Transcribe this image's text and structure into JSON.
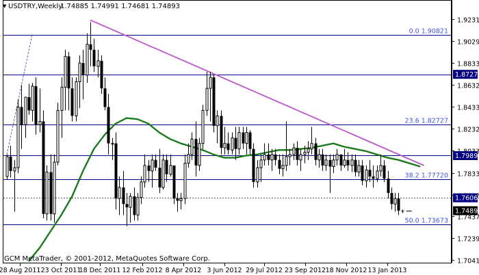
{
  "header": {
    "symbol": "USDTRY,Weekly",
    "ohlc": "1.74885 1.74991 1.74681 1.74893"
  },
  "footer": {
    "copyright": "GCM MetaTrader, © 2001-2012, MetaQuotes Software Corp."
  },
  "colors": {
    "background": "#ffffff",
    "candle": "#000000",
    "moving_average": "#1a7a1a",
    "trendline": "#bb55cc",
    "fibonacci": "#00008b",
    "fibonacci_label": "#4455dd",
    "price_tag": "#000080",
    "current_price_tag": "#000000",
    "text": "#000000"
  },
  "chart_data": {
    "type": "candlestick",
    "title": "USDTRY,Weekly",
    "timeframe": "Weekly",
    "x_tick_labels": [
      "28 Aug 2011",
      "23 Oct 2011",
      "18 Dec 2011",
      "12 Feb 2012",
      "8 Apr 2012",
      "3 Jun 2012",
      "29 Jul 2012",
      "23 Sep 2012",
      "18 Nov 2012",
      "13 Jan 2013"
    ],
    "y_ticks": [
      1.9231,
      1.9029,
      1.8833,
      1.8632,
      1.8433,
      1.8232,
      1.8033,
      1.7833,
      1.7632,
      1.7437,
      1.7239,
      1.7041
    ],
    "y_tick_labels": [
      "1.92310",
      "1.90290",
      "1.88330",
      "1.86320",
      "1.84330",
      "1.82320",
      "1.80330",
      "1.78330",
      "1.76320",
      "1.74370",
      "1.72390",
      "1.70410"
    ],
    "ylim": [
      1.703,
      1.929
    ],
    "fibonacci_levels": [
      {
        "label": "0.0 1.90821",
        "value": 1.90821
      },
      {
        "label": "23.6 1.82727",
        "value": 1.82727
      },
      {
        "label": "38.2 1.77720",
        "value": 1.7772
      },
      {
        "label": "50.0 1.73673",
        "value": 1.73673
      }
    ],
    "horizontal_price_levels": [
      1.87271,
      1.79893
    ],
    "price_tags": [
      "1.87271",
      "1.79893",
      "1.76062",
      "1.74893"
    ],
    "current_price": 1.74893,
    "current_price_label": "1.74893",
    "dotted_level": 1.76062,
    "trendline": {
      "from": {
        "bar": 23,
        "price": 1.922
      },
      "to": {
        "bar": 115,
        "price": 1.79
      }
    },
    "left_dashed_line": {
      "from": {
        "bar": 0,
        "price": 1.8
      },
      "to": {
        "bar": 7,
        "price": 1.909
      }
    },
    "series": [
      {
        "type": "candlestick",
        "bars": [
          [
            1.78,
            1.8,
            1.777,
            1.798
          ],
          [
            1.798,
            1.808,
            1.779,
            1.785
          ],
          [
            1.785,
            1.795,
            1.748,
            1.788
          ],
          [
            1.788,
            1.85,
            1.783,
            1.843
          ],
          [
            1.843,
            1.863,
            1.805,
            1.827
          ],
          [
            1.827,
            1.85,
            1.815,
            1.852
          ],
          [
            1.852,
            1.864,
            1.836,
            1.84
          ],
          [
            1.84,
            1.865,
            1.83,
            1.862
          ],
          [
            1.862,
            1.87,
            1.818,
            1.827
          ],
          [
            1.827,
            1.86,
            1.82,
            1.83
          ],
          [
            1.83,
            1.84,
            1.742,
            1.746
          ],
          [
            1.746,
            1.79,
            1.74,
            1.784
          ],
          [
            1.784,
            1.8,
            1.74,
            1.746
          ],
          [
            1.746,
            1.8,
            1.738,
            1.793
          ],
          [
            1.793,
            1.847,
            1.79,
            1.84
          ],
          [
            1.84,
            1.87,
            1.815,
            1.861
          ],
          [
            1.861,
            1.895,
            1.84,
            1.889
          ],
          [
            1.889,
            1.893,
            1.84,
            1.86
          ],
          [
            1.86,
            1.87,
            1.83,
            1.835
          ],
          [
            1.835,
            1.87,
            1.83,
            1.866
          ],
          [
            1.866,
            1.89,
            1.842,
            1.883
          ],
          [
            1.883,
            1.895,
            1.85,
            1.872
          ],
          [
            1.872,
            1.91,
            1.865,
            1.9
          ],
          [
            1.9,
            1.92,
            1.88,
            1.895
          ],
          [
            1.895,
            1.905,
            1.875,
            1.88
          ],
          [
            1.88,
            1.895,
            1.87,
            1.885
          ],
          [
            1.885,
            1.89,
            1.855,
            1.86
          ],
          [
            1.86,
            1.87,
            1.84,
            1.843
          ],
          [
            1.843,
            1.855,
            1.8,
            1.81
          ],
          [
            1.81,
            1.815,
            1.795,
            1.81
          ],
          [
            1.81,
            1.82,
            1.75,
            1.76
          ],
          [
            1.76,
            1.78,
            1.745,
            1.77
          ],
          [
            1.77,
            1.785,
            1.745,
            1.755
          ],
          [
            1.755,
            1.765,
            1.735,
            1.752
          ],
          [
            1.752,
            1.765,
            1.738,
            1.762
          ],
          [
            1.762,
            1.77,
            1.74,
            1.745
          ],
          [
            1.745,
            1.765,
            1.74,
            1.761
          ],
          [
            1.761,
            1.78,
            1.755,
            1.775
          ],
          [
            1.775,
            1.8,
            1.77,
            1.79
          ],
          [
            1.79,
            1.795,
            1.775,
            1.785
          ],
          [
            1.785,
            1.8,
            1.77,
            1.795
          ],
          [
            1.795,
            1.8,
            1.785,
            1.788
          ],
          [
            1.788,
            1.805,
            1.765,
            1.77
          ],
          [
            1.77,
            1.8,
            1.768,
            1.795
          ],
          [
            1.795,
            1.8,
            1.775,
            1.782
          ],
          [
            1.782,
            1.8,
            1.78,
            1.79
          ],
          [
            1.79,
            1.79,
            1.755,
            1.76
          ],
          [
            1.76,
            1.765,
            1.748,
            1.758
          ],
          [
            1.758,
            1.765,
            1.75,
            1.76
          ],
          [
            1.76,
            1.8,
            1.755,
            1.792
          ],
          [
            1.792,
            1.81,
            1.788,
            1.8
          ],
          [
            1.8,
            1.82,
            1.795,
            1.814
          ],
          [
            1.814,
            1.83,
            1.78,
            1.79
          ],
          [
            1.79,
            1.815,
            1.785,
            1.81
          ],
          [
            1.81,
            1.845,
            1.805,
            1.84
          ],
          [
            1.84,
            1.875,
            1.835,
            1.86
          ],
          [
            1.86,
            1.875,
            1.83,
            1.87
          ],
          [
            1.87,
            1.872,
            1.82,
            1.826
          ],
          [
            1.826,
            1.84,
            1.81,
            1.835
          ],
          [
            1.835,
            1.84,
            1.8,
            1.806
          ],
          [
            1.806,
            1.825,
            1.8,
            1.81
          ],
          [
            1.81,
            1.82,
            1.8,
            1.804
          ],
          [
            1.804,
            1.82,
            1.8,
            1.815
          ],
          [
            1.815,
            1.825,
            1.795,
            1.805
          ],
          [
            1.805,
            1.825,
            1.8,
            1.82
          ],
          [
            1.82,
            1.825,
            1.805,
            1.81
          ],
          [
            1.81,
            1.825,
            1.8,
            1.82
          ],
          [
            1.82,
            1.822,
            1.8,
            1.805
          ],
          [
            1.805,
            1.81,
            1.77,
            1.775
          ],
          [
            1.775,
            1.795,
            1.77,
            1.788
          ],
          [
            1.788,
            1.8,
            1.775,
            1.795
          ],
          [
            1.795,
            1.81,
            1.79,
            1.8
          ],
          [
            1.8,
            1.81,
            1.79,
            1.795
          ],
          [
            1.795,
            1.805,
            1.785,
            1.8
          ],
          [
            1.8,
            1.805,
            1.79,
            1.795
          ],
          [
            1.795,
            1.8,
            1.782,
            1.787
          ],
          [
            1.787,
            1.8,
            1.78,
            1.79
          ],
          [
            1.79,
            1.83,
            1.785,
            1.798
          ],
          [
            1.798,
            1.805,
            1.79,
            1.8
          ],
          [
            1.8,
            1.81,
            1.795,
            1.806
          ],
          [
            1.806,
            1.812,
            1.79,
            1.795
          ],
          [
            1.795,
            1.805,
            1.785,
            1.8
          ],
          [
            1.8,
            1.808,
            1.792,
            1.802
          ],
          [
            1.802,
            1.812,
            1.795,
            1.805
          ],
          [
            1.805,
            1.825,
            1.8,
            1.81
          ],
          [
            1.81,
            1.815,
            1.79,
            1.795
          ],
          [
            1.795,
            1.805,
            1.788,
            1.8
          ],
          [
            1.8,
            1.805,
            1.785,
            1.79
          ],
          [
            1.79,
            1.8,
            1.785,
            1.795
          ],
          [
            1.795,
            1.8,
            1.765,
            1.789
          ],
          [
            1.789,
            1.8,
            1.783,
            1.795
          ],
          [
            1.795,
            1.805,
            1.79,
            1.8
          ],
          [
            1.8,
            1.8,
            1.785,
            1.79
          ],
          [
            1.79,
            1.805,
            1.788,
            1.795
          ],
          [
            1.795,
            1.802,
            1.785,
            1.79
          ],
          [
            1.79,
            1.8,
            1.784,
            1.795
          ],
          [
            1.795,
            1.8,
            1.78,
            1.784
          ],
          [
            1.784,
            1.795,
            1.78,
            1.79
          ],
          [
            1.79,
            1.795,
            1.772,
            1.776
          ],
          [
            1.776,
            1.79,
            1.77,
            1.786
          ],
          [
            1.786,
            1.795,
            1.775,
            1.78
          ],
          [
            1.78,
            1.79,
            1.77,
            1.778
          ],
          [
            1.778,
            1.79,
            1.775,
            1.785
          ],
          [
            1.785,
            1.8,
            1.78,
            1.79
          ],
          [
            1.79,
            1.795,
            1.775,
            1.778
          ],
          [
            1.778,
            1.785,
            1.76,
            1.765
          ],
          [
            1.765,
            1.77,
            1.75,
            1.755
          ],
          [
            1.755,
            1.765,
            1.748,
            1.76
          ],
          [
            1.76,
            1.765,
            1.745,
            1.749
          ],
          [
            1.749,
            1.7499,
            1.7468,
            1.7489
          ]
        ]
      },
      {
        "type": "line",
        "role": "moving average",
        "points": [
          [
            6,
            1.703
          ],
          [
            9,
            1.715
          ],
          [
            12,
            1.73
          ],
          [
            15,
            1.745
          ],
          [
            18,
            1.762
          ],
          [
            21,
            1.785
          ],
          [
            24,
            1.805
          ],
          [
            27,
            1.818
          ],
          [
            30,
            1.828
          ],
          [
            33,
            1.833
          ],
          [
            36,
            1.832
          ],
          [
            39,
            1.828
          ],
          [
            42,
            1.82
          ],
          [
            45,
            1.814
          ],
          [
            48,
            1.81
          ],
          [
            51,
            1.807
          ],
          [
            54,
            1.804
          ],
          [
            57,
            1.8
          ],
          [
            60,
            1.797
          ],
          [
            63,
            1.797
          ],
          [
            66,
            1.799
          ],
          [
            69,
            1.8
          ],
          [
            72,
            1.802
          ],
          [
            75,
            1.804
          ],
          [
            78,
            1.804
          ],
          [
            81,
            1.805
          ],
          [
            84,
            1.806
          ],
          [
            87,
            1.808
          ],
          [
            90,
            1.81
          ],
          [
            93,
            1.807
          ],
          [
            96,
            1.805
          ],
          [
            99,
            1.803
          ],
          [
            102,
            1.8
          ],
          [
            105,
            1.797
          ],
          [
            108,
            1.795
          ],
          [
            111,
            1.792
          ],
          [
            114,
            1.789
          ]
        ]
      }
    ]
  }
}
